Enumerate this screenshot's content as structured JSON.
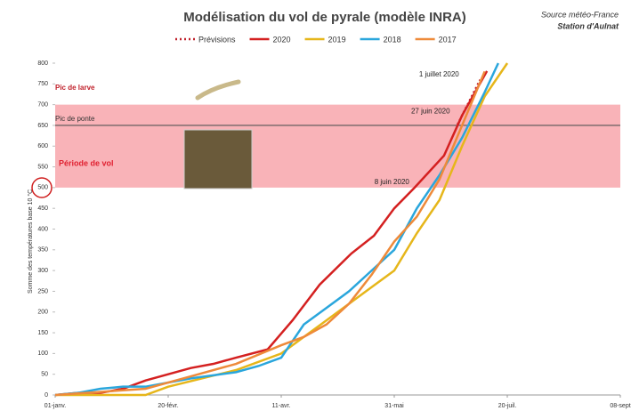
{
  "chart_data": {
    "type": "line",
    "title": "Modélisation du vol de pyrale (modèle INRA)",
    "source": [
      "Source météo-France",
      "Station d'Aulnat"
    ],
    "y_label": "Somme des températures base 10 °C",
    "xlim": [
      0,
      250
    ],
    "xticks": [
      {
        "value": 0,
        "label": "01-janv."
      },
      {
        "value": 50,
        "label": "20-févr."
      },
      {
        "value": 100,
        "label": "11-avr."
      },
      {
        "value": 150,
        "label": "31-mai"
      },
      {
        "value": 200,
        "label": "20-juil."
      },
      {
        "value": 250,
        "label": "08-sept"
      }
    ],
    "ylim": [
      0,
      800
    ],
    "yticks": [
      0,
      50,
      100,
      150,
      200,
      250,
      300,
      350,
      400,
      450,
      500,
      550,
      600,
      650,
      700,
      750,
      800
    ],
    "bands": [
      {
        "label": "Période de vol",
        "from": 500,
        "to": 700,
        "color": "#f9b3b8"
      }
    ],
    "hlines": [
      {
        "label": "Pic de ponte",
        "value": 650,
        "color": "#555555"
      }
    ],
    "level_labels": [
      {
        "label": "Pic de larve",
        "value": 740
      }
    ],
    "annotations": [
      {
        "label": "1 juillet 2020",
        "x": 181,
        "y": 760
      },
      {
        "label": "27 juin 2020",
        "x": 177,
        "y": 670
      },
      {
        "label": "8 juin 2020",
        "x": 159,
        "y": 500
      }
    ],
    "series": [
      {
        "name": "Prévisions",
        "color": "#c0202a",
        "style": "dotted",
        "x": [
          178,
          188
        ],
        "values": [
          652,
          760
        ]
      },
      {
        "name": "2020",
        "color": "#d42020",
        "style": "solid",
        "x": [
          0,
          10,
          20,
          30,
          40,
          50,
          60,
          70,
          80,
          94,
          105,
          117,
          131,
          141,
          150,
          159,
          172,
          180,
          191
        ],
        "values": [
          0,
          5,
          5,
          15,
          35,
          50,
          65,
          75,
          90,
          110,
          180,
          266,
          341,
          384,
          450,
          500,
          577,
          674,
          781
        ]
      },
      {
        "name": "2019",
        "color": "#e6b61a",
        "style": "solid",
        "x": [
          0,
          40,
          50,
          80,
          100,
          120,
          140,
          150,
          160,
          170,
          180,
          190,
          200
        ],
        "values": [
          0,
          0,
          20,
          60,
          100,
          180,
          260,
          300,
          390,
          470,
          600,
          720,
          800
        ]
      },
      {
        "name": "2018",
        "color": "#2aa6dc",
        "style": "solid",
        "x": [
          0,
          10,
          20,
          30,
          40,
          60,
          80,
          90,
          100,
          110,
          120,
          130,
          140,
          150,
          160,
          170,
          180,
          190,
          196
        ],
        "values": [
          0,
          5,
          15,
          20,
          20,
          40,
          55,
          70,
          90,
          170,
          210,
          250,
          300,
          350,
          450,
          530,
          620,
          730,
          800
        ]
      },
      {
        "name": "2017",
        "color": "#ee8a3a",
        "style": "solid",
        "x": [
          0,
          40,
          60,
          80,
          100,
          110,
          120,
          130,
          140,
          150,
          160,
          170,
          180,
          190
        ],
        "values": [
          0,
          15,
          45,
          75,
          120,
          140,
          170,
          220,
          290,
          370,
          430,
          520,
          650,
          780
        ]
      }
    ]
  }
}
